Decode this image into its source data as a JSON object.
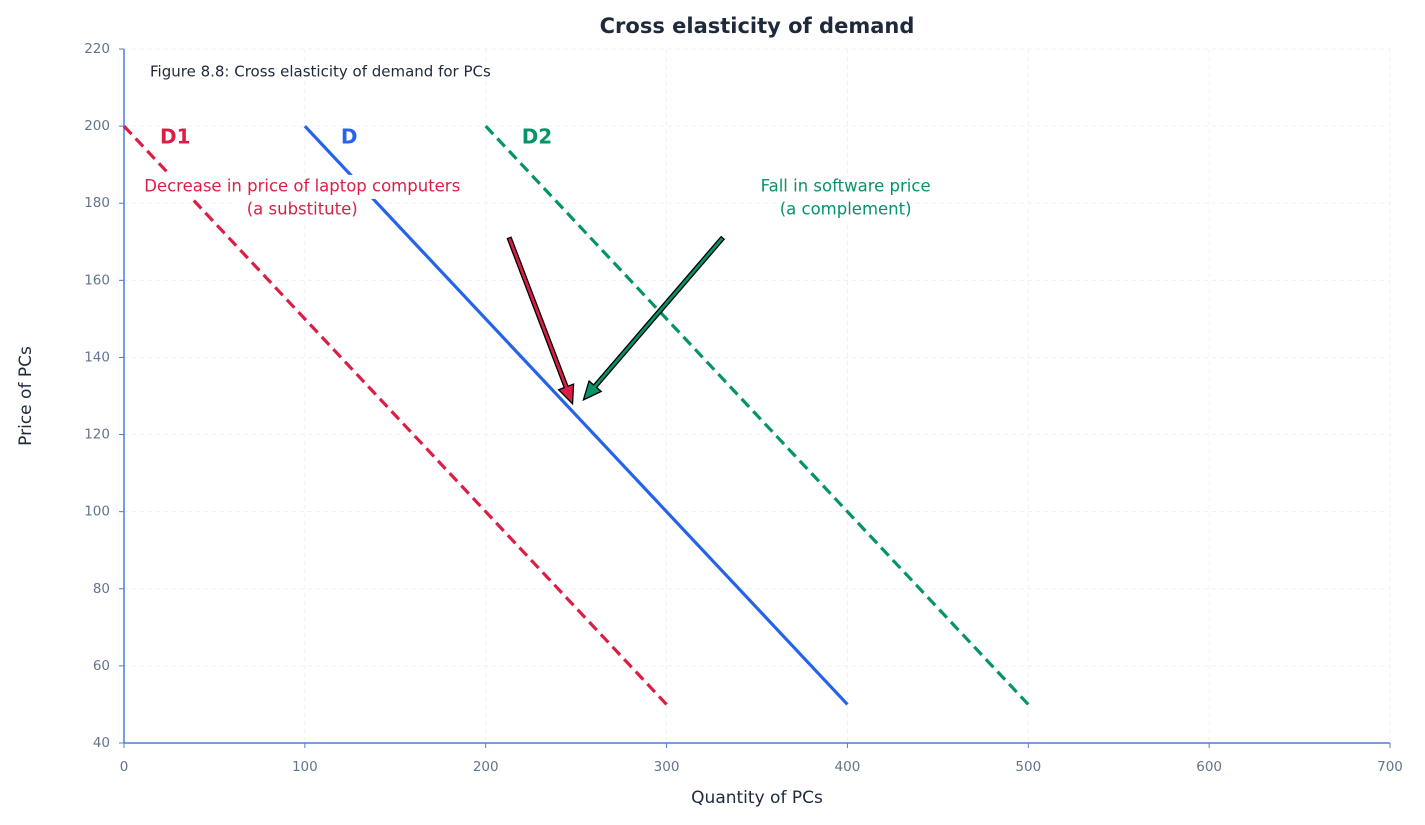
{
  "chart_data": {
    "type": "line",
    "title": "Cross elasticity of demand",
    "note": "Figure 8.8: Cross elasticity of demand for PCs",
    "xlabel": "Quantity of PCs",
    "ylabel": "Price of PCs",
    "xlim": [
      0,
      700
    ],
    "ylim": [
      40,
      220
    ],
    "xticks": [
      0,
      100,
      200,
      300,
      400,
      500,
      600,
      700
    ],
    "yticks": [
      40,
      60,
      80,
      100,
      120,
      140,
      160,
      180,
      200,
      220
    ],
    "grid": true,
    "series": [
      {
        "name": "D1",
        "color": "#dc1e46",
        "dashed": true,
        "x": [
          0,
          300
        ],
        "values": [
          200,
          50
        ]
      },
      {
        "name": "D",
        "color": "#2563eb",
        "dashed": false,
        "x": [
          100,
          400
        ],
        "values": [
          200,
          50
        ]
      },
      {
        "name": "D2",
        "color": "#05936a",
        "dashed": true,
        "x": [
          200,
          500
        ],
        "values": [
          200,
          50
        ]
      }
    ],
    "annotations": [
      {
        "lines": [
          "Decrease in price of laptop computers",
          "(a substitute)"
        ],
        "color": "#dc1e46",
        "xytext": [
          213,
          171
        ],
        "xy": [
          248,
          128
        ]
      },
      {
        "lines": [
          "Fall in software price",
          "(a complement)"
        ],
        "color": "#05936a",
        "xytext": [
          331,
          171
        ],
        "xy": [
          254,
          129
        ]
      }
    ]
  }
}
